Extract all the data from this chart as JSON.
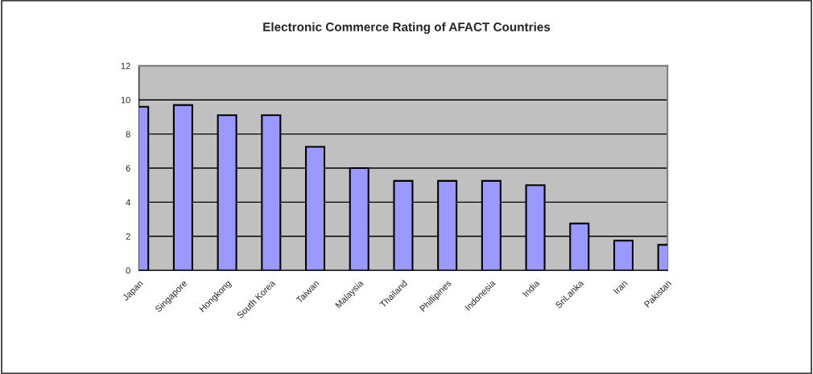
{
  "chart_data": {
    "type": "bar",
    "title": "Electronic Commerce Rating of AFACT Countries",
    "categories": [
      "Japan",
      "Singapore",
      "Hongkong",
      "South Korea",
      "Taiwan",
      "Malaysia",
      "Thailand",
      "Phillipines",
      "Indonesia",
      "India",
      "SriLanka",
      "Iran",
      "Pakistan"
    ],
    "values": [
      9.6,
      9.7,
      9.1,
      9.1,
      7.25,
      6.0,
      5.25,
      5.25,
      5.25,
      5.0,
      2.75,
      1.75,
      1.5
    ],
    "color": "#9999ff",
    "ylim": [
      0,
      12
    ],
    "yticks": [
      0,
      2,
      4,
      6,
      8,
      10,
      12
    ],
    "grid": "y",
    "legend": false
  }
}
